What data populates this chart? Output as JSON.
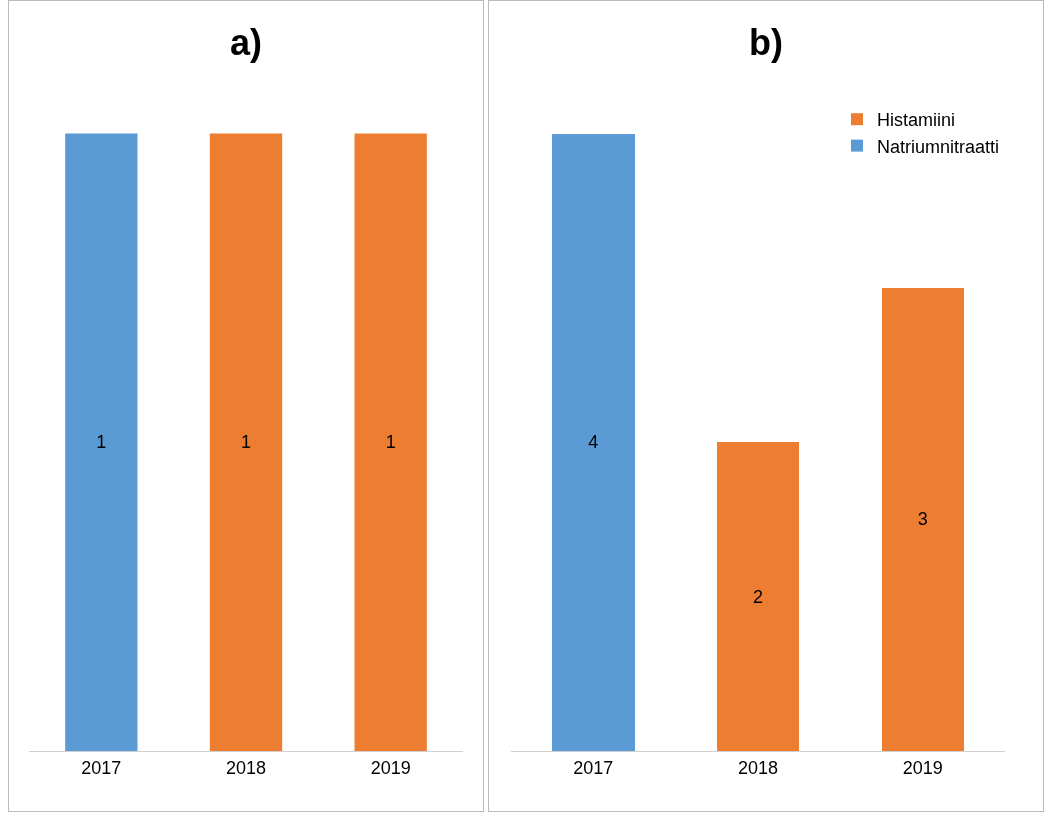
{
  "chart_data": [
    {
      "type": "bar",
      "title": "a)",
      "categories": [
        "2017",
        "2018",
        "2019"
      ],
      "values": [
        1,
        1,
        1
      ],
      "colors": [
        "#5b9bd5",
        "#ed7d31",
        "#ed7d31"
      ],
      "data_labels": true,
      "legend": false,
      "grid": false,
      "tick_labels": "x"
    },
    {
      "type": "bar",
      "title": "b)",
      "categories": [
        "2017",
        "2018",
        "2019"
      ],
      "stacked": true,
      "series": [
        {
          "name": "Natriumnitraatti",
          "color": "#5b9bd5",
          "values": [
            4,
            null,
            null
          ]
        },
        {
          "name": "Histamiini",
          "color": "#ed7d31",
          "values": [
            null,
            2,
            3
          ]
        }
      ],
      "data_labels": true,
      "legend": "top right",
      "grid": false,
      "tick_labels": "x"
    }
  ]
}
